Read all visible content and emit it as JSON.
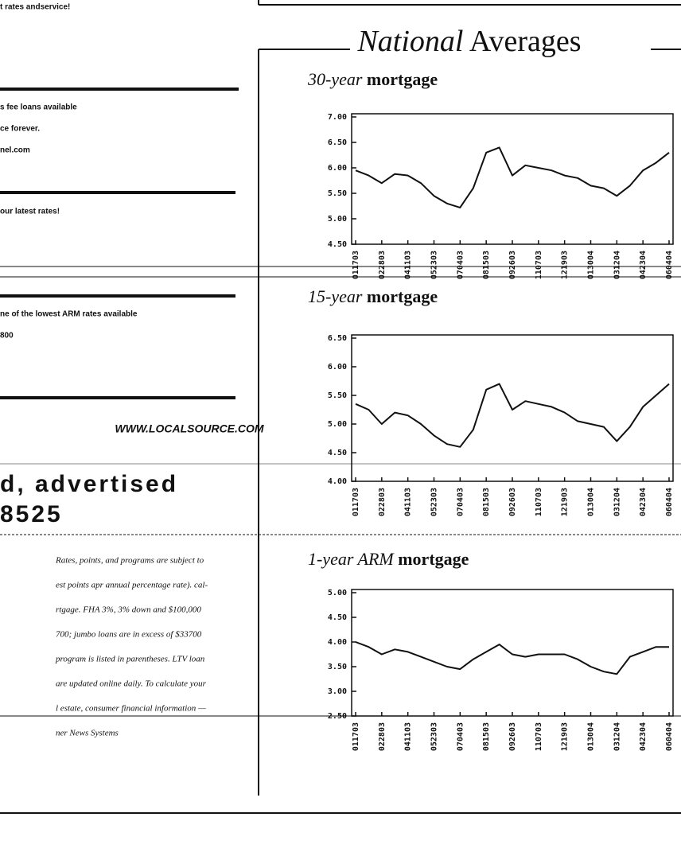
{
  "left": {
    "lines": [
      "t rates andservice!",
      "s fee loans available",
      "ce forever.",
      "nel.com",
      "our latest rates!",
      "ne of the lowest ARM rates available",
      "800"
    ],
    "url": "WWW.LOCALSOURCE.COM",
    "headline": [
      "d, advertised",
      "8525"
    ],
    "paragraph": [
      "Rates, points, and programs are subject to",
      "est points apr annual percentage rate). cal-",
      "rtgage. FHA 3%, 3% down and $100,000",
      "700; jumbo loans are in excess of $33700",
      "program is listed in parentheses. LTV loan",
      "are updated online daily. To calculate your",
      "l estate, consumer financial information —",
      "ner News Systems"
    ]
  },
  "heading": {
    "italic": "National",
    "rest": "Averages"
  },
  "chart_data": [
    {
      "type": "line",
      "title_lead": "30-year",
      "title": "mortgage",
      "categories": [
        "011703",
        null,
        "022803",
        null,
        "041103",
        null,
        "052303",
        null,
        "070403",
        null,
        "081503",
        null,
        "092603",
        null,
        "110703",
        null,
        "121903",
        null,
        "013004",
        null,
        "031204",
        null,
        "042304",
        null,
        "060404"
      ],
      "values": [
        5.95,
        5.85,
        5.7,
        5.88,
        5.85,
        5.7,
        5.45,
        5.3,
        5.22,
        5.6,
        6.3,
        6.4,
        5.85,
        6.05,
        6.0,
        5.95,
        5.85,
        5.8,
        5.65,
        5.6,
        5.45,
        5.65,
        5.95,
        6.1,
        6.3
      ],
      "color": "#111111",
      "ylim": [
        4.5,
        7.0
      ],
      "yticks": [
        {
          "value": 7.0,
          "label": "7.00"
        },
        {
          "value": 6.5,
          "label": "6.50"
        },
        {
          "value": 6.0,
          "label": "6.00"
        },
        {
          "value": 5.5,
          "label": "5.50"
        },
        {
          "value": 5.0,
          "label": "5.00"
        },
        {
          "value": 4.5,
          "label": "4.50"
        }
      ]
    },
    {
      "type": "line",
      "title_lead": "15-year",
      "title": "mortgage",
      "categories": [
        "011703",
        null,
        "022803",
        null,
        "041103",
        null,
        "052303",
        null,
        "070403",
        null,
        "081503",
        null,
        "092603",
        null,
        "110703",
        null,
        "121903",
        null,
        "013004",
        null,
        "031204",
        null,
        "042304",
        null,
        "060404"
      ],
      "values": [
        5.35,
        5.25,
        5.0,
        5.2,
        5.15,
        5.0,
        4.8,
        4.65,
        4.6,
        4.9,
        5.6,
        5.7,
        5.25,
        5.4,
        5.35,
        5.3,
        5.2,
        5.05,
        5.0,
        4.95,
        4.7,
        4.95,
        5.3,
        5.5,
        5.7
      ],
      "color": "#111111",
      "ylim": [
        4.0,
        6.5
      ],
      "yticks": [
        {
          "value": 6.5,
          "label": "6.50"
        },
        {
          "value": 6.0,
          "label": "6.00"
        },
        {
          "value": 5.5,
          "label": "5.50"
        },
        {
          "value": 5.0,
          "label": "5.00"
        },
        {
          "value": 4.5,
          "label": "4.50"
        },
        {
          "value": 4.0,
          "label": "4.00"
        }
      ]
    },
    {
      "type": "line",
      "title_lead": "1-year ARM",
      "title": "mortgage",
      "categories": [
        "011703",
        null,
        "022803",
        null,
        "041103",
        null,
        "052303",
        null,
        "070403",
        null,
        "081503",
        null,
        "092603",
        null,
        "110703",
        null,
        "121903",
        null,
        "013004",
        null,
        "031204",
        null,
        "042304",
        null,
        "060404"
      ],
      "values": [
        4.0,
        3.9,
        3.75,
        3.85,
        3.8,
        3.7,
        3.6,
        3.5,
        3.45,
        3.65,
        3.8,
        3.95,
        3.75,
        3.7,
        3.75,
        3.75,
        3.75,
        3.65,
        3.5,
        3.4,
        3.35,
        3.7,
        3.8,
        3.9,
        3.9
      ],
      "color": "#111111",
      "ylim": [
        2.5,
        5.0
      ],
      "yticks": [
        {
          "value": 5.0,
          "label": "5.00"
        },
        {
          "value": 4.5,
          "label": "4.50"
        },
        {
          "value": 4.0,
          "label": "4.00"
        },
        {
          "value": 3.5,
          "label": "3.50"
        },
        {
          "value": 3.0,
          "label": "3.00"
        },
        {
          "value": 2.5,
          "label": "2.50"
        }
      ]
    }
  ]
}
